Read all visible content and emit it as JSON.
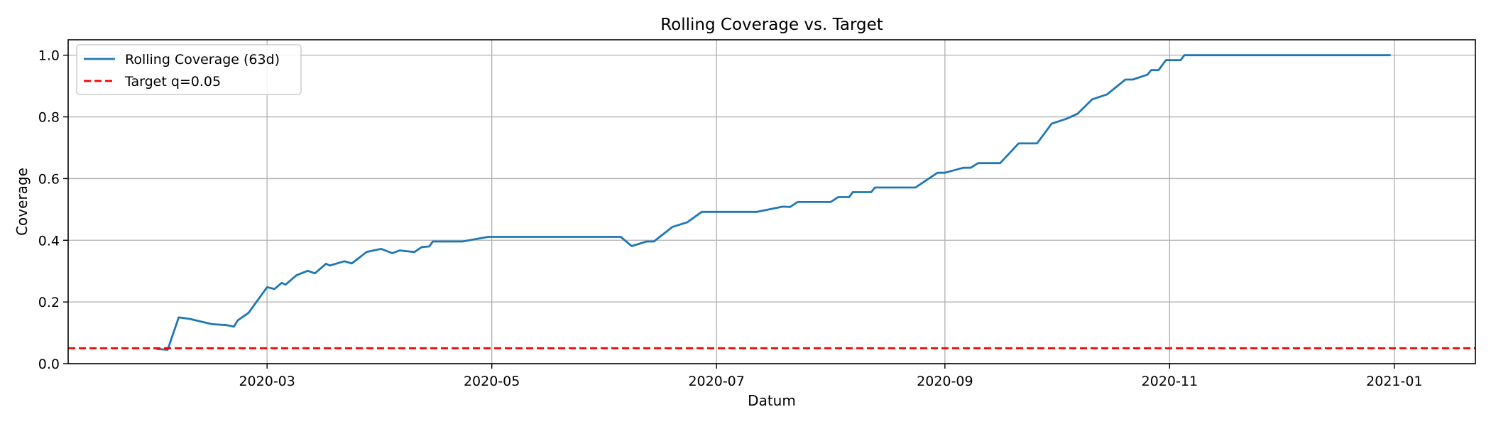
{
  "chart_data": {
    "type": "line",
    "title": "Rolling Coverage vs. Target",
    "xlabel": "Datum",
    "ylabel": "Coverage",
    "xlim": [
      "2020-01-07",
      "2021-01-23"
    ],
    "ylim": [
      0,
      1.05
    ],
    "x_ticks": [
      "2020-03-01",
      "2020-05-01",
      "2020-07-01",
      "2020-09-01",
      "2020-11-01",
      "2021-01-01"
    ],
    "x_tick_labels": [
      "2020-03",
      "2020-05",
      "2020-07",
      "2020-09",
      "2020-11",
      "2021-01"
    ],
    "y_ticks": [
      0.0,
      0.2,
      0.4,
      0.6,
      0.8,
      1.0
    ],
    "y_tick_labels": [
      "0.0",
      "0.2",
      "0.4",
      "0.6",
      "0.8",
      "1.0"
    ],
    "grid": true,
    "legend_position": "upper-left",
    "series": [
      {
        "name": "Rolling Coverage (63d)",
        "color": "#1f77b4",
        "style": "solid",
        "points": [
          [
            "2020-01-31",
            0.048
          ],
          [
            "2020-02-03",
            0.045
          ],
          [
            "2020-02-06",
            0.15
          ],
          [
            "2020-02-09",
            0.145
          ],
          [
            "2020-02-15",
            0.128
          ],
          [
            "2020-02-19",
            0.125
          ],
          [
            "2020-02-21",
            0.12
          ],
          [
            "2020-02-22",
            0.14
          ],
          [
            "2020-02-25",
            0.165
          ],
          [
            "2020-03-01",
            0.248
          ],
          [
            "2020-03-03",
            0.242
          ],
          [
            "2020-03-05",
            0.262
          ],
          [
            "2020-03-06",
            0.256
          ],
          [
            "2020-03-09",
            0.287
          ],
          [
            "2020-03-12",
            0.301
          ],
          [
            "2020-03-14",
            0.293
          ],
          [
            "2020-03-17",
            0.324
          ],
          [
            "2020-03-18",
            0.318
          ],
          [
            "2020-03-22",
            0.332
          ],
          [
            "2020-03-24",
            0.325
          ],
          [
            "2020-03-28",
            0.362
          ],
          [
            "2020-04-01",
            0.372
          ],
          [
            "2020-04-04",
            0.358
          ],
          [
            "2020-04-06",
            0.367
          ],
          [
            "2020-04-10",
            0.362
          ],
          [
            "2020-04-12",
            0.378
          ],
          [
            "2020-04-14",
            0.38
          ],
          [
            "2020-04-15",
            0.396
          ],
          [
            "2020-04-23",
            0.396
          ],
          [
            "2020-04-30",
            0.411
          ],
          [
            "2020-05-08",
            0.411
          ],
          [
            "2020-05-16",
            0.411
          ],
          [
            "2020-06-05",
            0.411
          ],
          [
            "2020-06-08",
            0.381
          ],
          [
            "2020-06-12",
            0.396
          ],
          [
            "2020-06-14",
            0.396
          ],
          [
            "2020-06-19",
            0.443
          ],
          [
            "2020-06-23",
            0.458
          ],
          [
            "2020-06-27",
            0.492
          ],
          [
            "2020-07-04",
            0.492
          ],
          [
            "2020-07-12",
            0.492
          ],
          [
            "2020-07-19",
            0.509
          ],
          [
            "2020-07-21",
            0.508
          ],
          [
            "2020-07-23",
            0.524
          ],
          [
            "2020-07-26",
            0.524
          ],
          [
            "2020-08-01",
            0.524
          ],
          [
            "2020-08-03",
            0.54
          ],
          [
            "2020-08-06",
            0.54
          ],
          [
            "2020-08-07",
            0.556
          ],
          [
            "2020-08-12",
            0.556
          ],
          [
            "2020-08-13",
            0.571
          ],
          [
            "2020-08-17",
            0.571
          ],
          [
            "2020-08-24",
            0.571
          ],
          [
            "2020-08-30",
            0.619
          ],
          [
            "2020-09-01",
            0.619
          ],
          [
            "2020-09-06",
            0.635
          ],
          [
            "2020-09-08",
            0.635
          ],
          [
            "2020-09-10",
            0.65
          ],
          [
            "2020-09-16",
            0.65
          ],
          [
            "2020-09-21",
            0.714
          ],
          [
            "2020-09-26",
            0.714
          ],
          [
            "2020-09-30",
            0.778
          ],
          [
            "2020-10-04",
            0.794
          ],
          [
            "2020-10-07",
            0.81
          ],
          [
            "2020-10-11",
            0.857
          ],
          [
            "2020-10-15",
            0.873
          ],
          [
            "2020-10-20",
            0.921
          ],
          [
            "2020-10-22",
            0.921
          ],
          [
            "2020-10-26",
            0.937
          ],
          [
            "2020-10-27",
            0.952
          ],
          [
            "2020-10-29",
            0.952
          ],
          [
            "2020-10-31",
            0.984
          ],
          [
            "2020-11-04",
            0.984
          ],
          [
            "2020-11-05",
            1.0
          ],
          [
            "2020-12-31",
            1.0
          ]
        ]
      },
      {
        "name": "Target q=0.05",
        "color": "#ff0000",
        "style": "dashed",
        "constant_y": 0.05
      }
    ]
  }
}
